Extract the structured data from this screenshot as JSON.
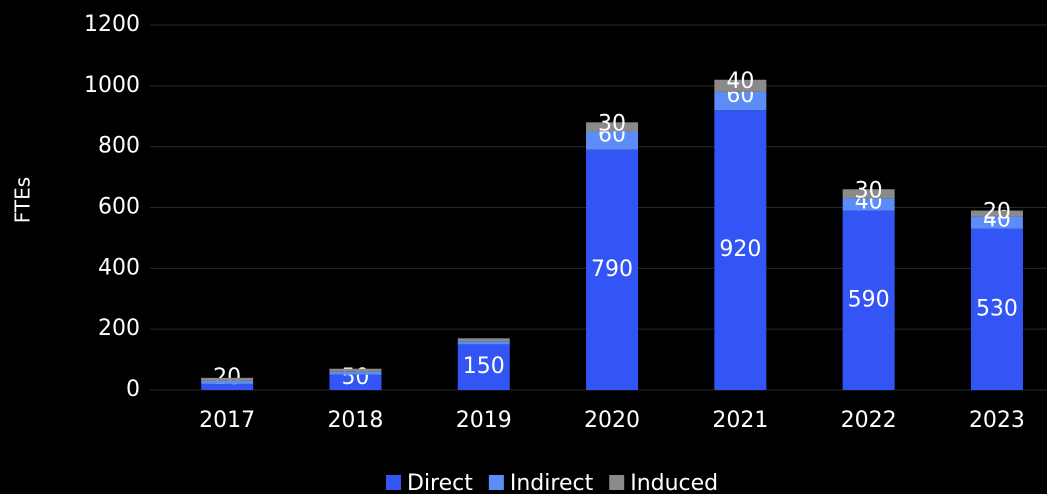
{
  "chart_data": {
    "type": "stacked_bar",
    "y_label": "FTEs",
    "categories": [
      "2017",
      "2018",
      "2019",
      "2020",
      "2021",
      "2022",
      "2023"
    ],
    "series": [
      {
        "name": "Direct",
        "color": "#3355f5",
        "values": [
          20,
          50,
          150,
          790,
          920,
          590,
          530
        ]
      },
      {
        "name": "Indirect",
        "color": "#5b8cf7",
        "values": [
          10,
          10,
          10,
          60,
          60,
          40,
          40
        ]
      },
      {
        "name": "Induced",
        "color": "#8a8a8a",
        "values": [
          10,
          10,
          10,
          30,
          40,
          30,
          20
        ]
      }
    ],
    "ylim": [
      0,
      1200
    ],
    "yticks": [
      0,
      200,
      400,
      600,
      800,
      1000,
      1200
    ],
    "grid": true,
    "legend": "bottom"
  }
}
